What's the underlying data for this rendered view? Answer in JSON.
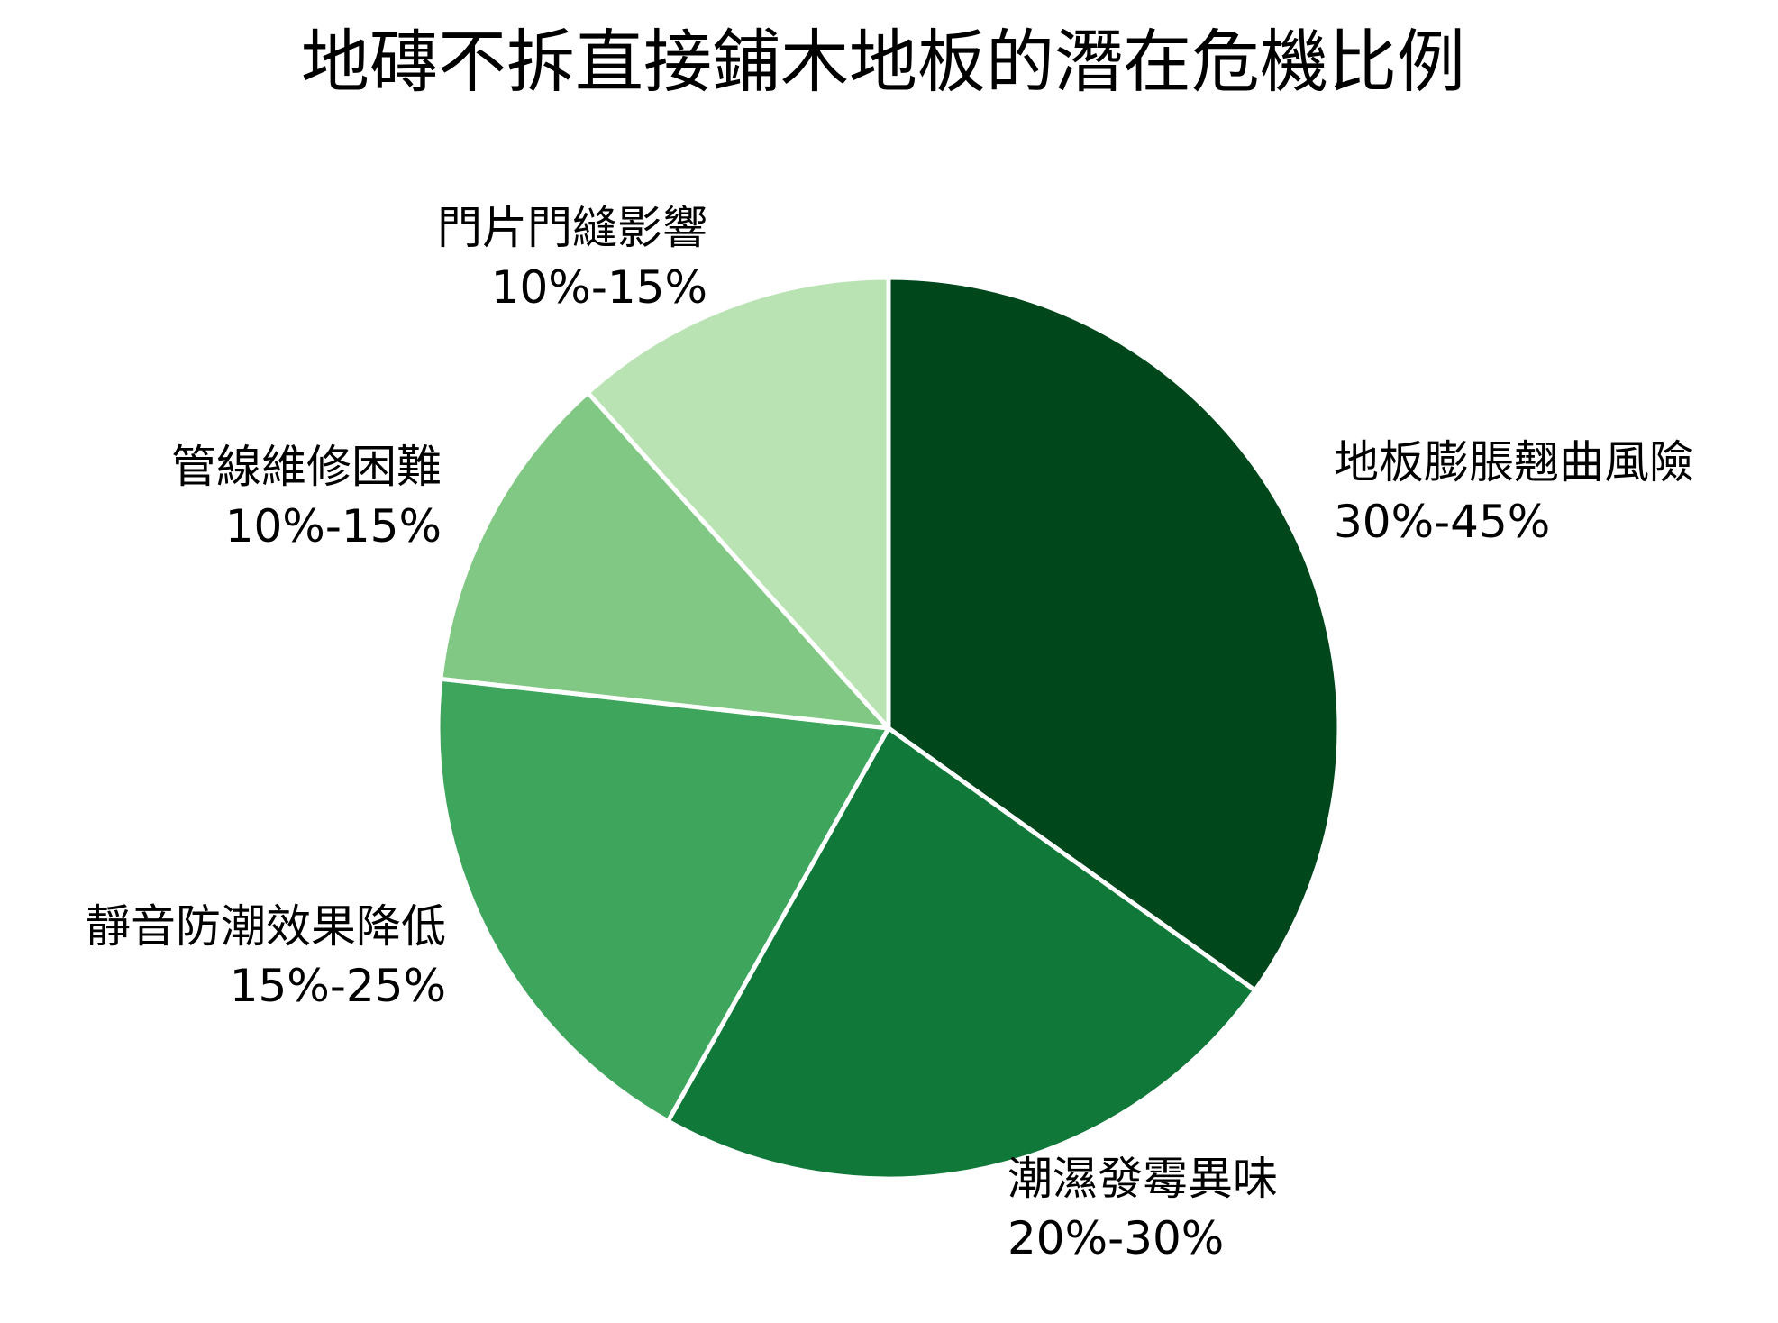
{
  "chart_data": {
    "type": "pie",
    "title": "地磚不拆直接鋪木地板的潛在危機比例",
    "slices": [
      {
        "label": "地板膨脹翹曲風險",
        "range": "30%-45%",
        "value": 37.5,
        "color": "#00471b"
      },
      {
        "label": "潮濕發霉異味",
        "range": "20%-30%",
        "value": 25,
        "color": "#107838"
      },
      {
        "label": "靜音防潮效果降低",
        "range": "15%-25%",
        "value": 20,
        "color": "#3ea55c"
      },
      {
        "label": "管線維修困難",
        "range": "10%-15%",
        "value": 12.5,
        "color": "#80c883"
      },
      {
        "label": "門片門縫影響",
        "range": "10%-15%",
        "value": 12.5,
        "color": "#b9e3b3"
      }
    ],
    "start_angle_deg": 0,
    "direction": "clockwise",
    "slice_border_color": "#ffffff"
  }
}
